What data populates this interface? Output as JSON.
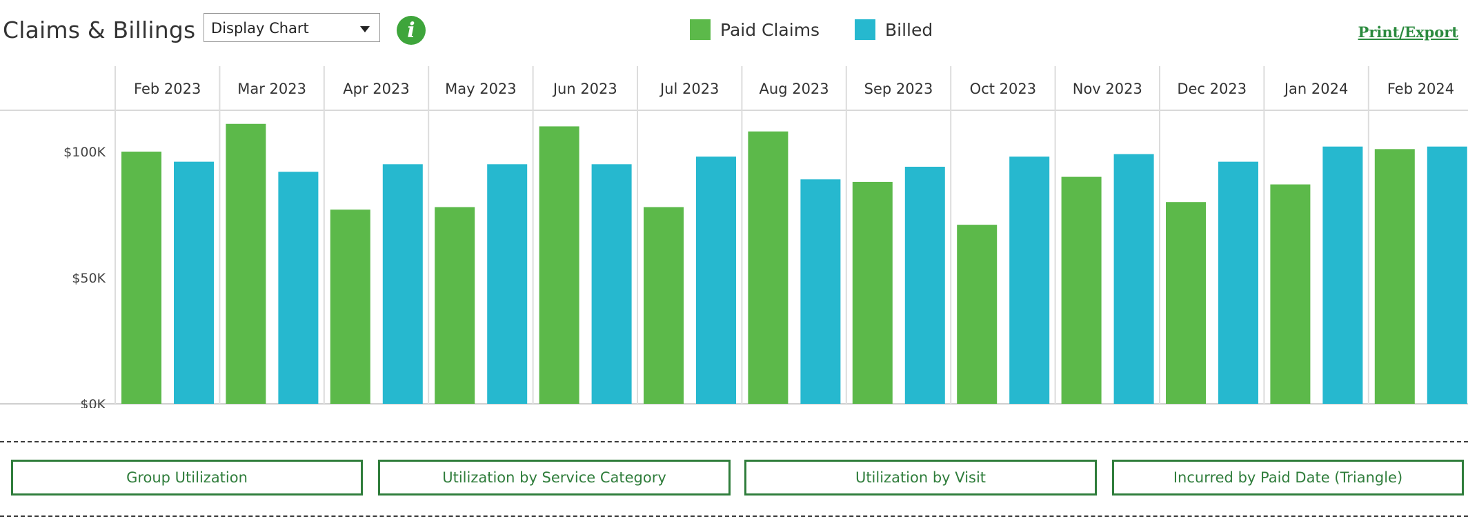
{
  "header": {
    "title": "Claims & Billings",
    "display_select": {
      "value": "Display Chart"
    },
    "info_icon": "i",
    "print_export": "Print/Export"
  },
  "legend": [
    {
      "label": "Paid Claims",
      "color": "#5cb94a"
    },
    {
      "label": "Billed",
      "color": "#26b8cf"
    }
  ],
  "chart_data": {
    "type": "bar",
    "categories": [
      "Feb 2023",
      "Mar 2023",
      "Apr 2023",
      "May 2023",
      "Jun 2023",
      "Jul 2023",
      "Aug 2023",
      "Sep 2023",
      "Oct 2023",
      "Nov 2023",
      "Dec 2023",
      "Jan 2024",
      "Feb 2024"
    ],
    "series": [
      {
        "name": "Paid Claims",
        "color": "#5cb94a",
        "values": [
          100000,
          111000,
          77000,
          78000,
          110000,
          78000,
          108000,
          88000,
          71000,
          90000,
          80000,
          87000,
          101000
        ]
      },
      {
        "name": "Billed",
        "color": "#26b8cf",
        "values": [
          96000,
          92000,
          95000,
          95000,
          95000,
          98000,
          89000,
          94000,
          98000,
          99000,
          96000,
          102000,
          102000
        ]
      }
    ],
    "yticks": [
      {
        "value": 0,
        "label": "$0K"
      },
      {
        "value": 50000,
        "label": "$50K"
      },
      {
        "value": 100000,
        "label": "$100K"
      }
    ],
    "ylim": [
      0,
      115000
    ],
    "grid": true
  },
  "nav_buttons": [
    {
      "label": "Group Utilization"
    },
    {
      "label": "Utilization by Service Category"
    },
    {
      "label": "Utilization by Visit"
    },
    {
      "label": "Incurred by Paid Date (Triangle)"
    }
  ]
}
